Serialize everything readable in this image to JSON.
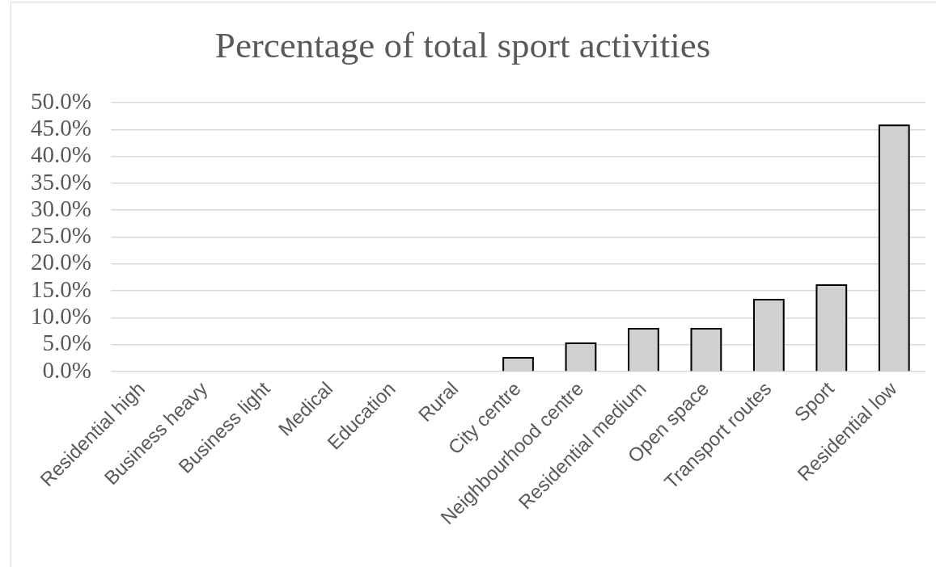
{
  "chart_data": {
    "type": "bar",
    "title": "Percentage of total sport activities",
    "categories": [
      "Residential high",
      "Business heavy",
      "Business light",
      "Medical",
      "Education",
      "Rural",
      "City centre",
      "Neighbourhood centre",
      "Residential medium",
      "Open space",
      "Transport routes",
      "Sport",
      "Residential low"
    ],
    "values": [
      0,
      0,
      0,
      0,
      0,
      0,
      2.7,
      5.4,
      8.1,
      8.1,
      13.5,
      16.2,
      45.9
    ],
    "color": "#d0d0d0",
    "ylim": [
      0,
      50
    ],
    "yticks": [
      {
        "value": 0,
        "label": "0.0%"
      },
      {
        "value": 5,
        "label": "5.0%"
      },
      {
        "value": 10,
        "label": "10.0%"
      },
      {
        "value": 15,
        "label": "15.0%"
      },
      {
        "value": 20,
        "label": "20.0%"
      },
      {
        "value": 25,
        "label": "25.0%"
      },
      {
        "value": 30,
        "label": "30.0%"
      },
      {
        "value": 35,
        "label": "35.0%"
      },
      {
        "value": 40,
        "label": "40.0%"
      },
      {
        "value": 45,
        "label": "45.0%"
      },
      {
        "value": 50,
        "label": "50.0%"
      }
    ],
    "grid": "y"
  }
}
